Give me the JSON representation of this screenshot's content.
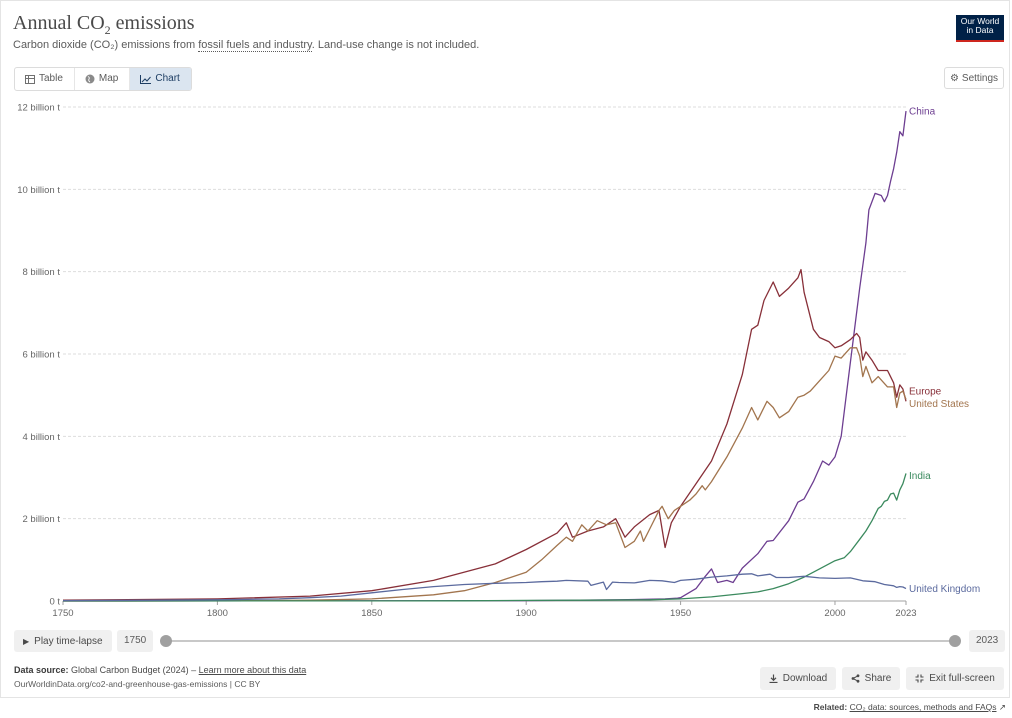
{
  "header": {
    "title_main": "Annual CO",
    "title_sub": "2",
    "title_end": " emissions",
    "subtitle_pre": "Carbon dioxide (CO₂) emissions from ",
    "subtitle_link": "fossil fuels and industry",
    "subtitle_post": ". Land-use change is not included.",
    "logo_line1": "Our World",
    "logo_line2": "in Data"
  },
  "tabs": [
    {
      "label": "Table",
      "icon": "table-icon"
    },
    {
      "label": "Map",
      "icon": "globe-icon"
    },
    {
      "label": "Chart",
      "icon": "line-chart-icon",
      "active": true
    }
  ],
  "settings_label": "Settings",
  "timeline": {
    "play_label": "Play time-lapse",
    "start_year": "1750",
    "end_year": "2023"
  },
  "footer": {
    "source_label": "Data source:",
    "source_text": "Global Carbon Budget (2024) – ",
    "learn_more": "Learn more about this data",
    "url": "OurWorldinData.org/co2-and-greenhouse-gas-emissions | CC BY",
    "download_label": "Download",
    "share_label": "Share",
    "fullscreen_label": "Exit full-screen",
    "related_label": "Related:",
    "related_link": "CO₂ data: sources, methods and FAQs"
  },
  "chart_data": {
    "type": "line",
    "title": "Annual CO₂ emissions",
    "xlabel": "",
    "ylabel": "",
    "xlim": [
      1750,
      2023
    ],
    "ylim": [
      0,
      12
    ],
    "x_ticks": [
      "1750",
      "1800",
      "1850",
      "1900",
      "1950",
      "2000",
      "2023"
    ],
    "y_ticks": [
      "0 t",
      "2 billion t",
      "4 billion t",
      "6 billion t",
      "8 billion t",
      "10 billion t",
      "12 billion t"
    ],
    "grid": true,
    "series": [
      {
        "name": "China",
        "color": "#6d3e91",
        "label_y": 11.9,
        "points": [
          [
            1750,
            0
          ],
          [
            1900,
            0.01
          ],
          [
            1930,
            0.03
          ],
          [
            1945,
            0.05
          ],
          [
            1949,
            0.07
          ],
          [
            1950,
            0.08
          ],
          [
            1955,
            0.3
          ],
          [
            1958,
            0.6
          ],
          [
            1960,
            0.78
          ],
          [
            1962,
            0.45
          ],
          [
            1965,
            0.5
          ],
          [
            1967,
            0.45
          ],
          [
            1970,
            0.8
          ],
          [
            1975,
            1.15
          ],
          [
            1978,
            1.45
          ],
          [
            1980,
            1.47
          ],
          [
            1985,
            1.95
          ],
          [
            1988,
            2.4
          ],
          [
            1990,
            2.48
          ],
          [
            1993,
            2.9
          ],
          [
            1996,
            3.4
          ],
          [
            1998,
            3.3
          ],
          [
            2000,
            3.5
          ],
          [
            2002,
            4.0
          ],
          [
            2004,
            5.2
          ],
          [
            2006,
            6.4
          ],
          [
            2008,
            7.6
          ],
          [
            2010,
            8.7
          ],
          [
            2011,
            9.5
          ],
          [
            2013,
            9.9
          ],
          [
            2015,
            9.85
          ],
          [
            2016,
            9.7
          ],
          [
            2017,
            9.85
          ],
          [
            2018,
            10.2
          ],
          [
            2019,
            10.5
          ],
          [
            2020,
            10.9
          ],
          [
            2021,
            11.4
          ],
          [
            2022,
            11.3
          ],
          [
            2023,
            11.9
          ]
        ]
      },
      {
        "name": "Europe",
        "color": "#883039",
        "label_y": 5.1,
        "points": [
          [
            1750,
            0.02
          ],
          [
            1800,
            0.05
          ],
          [
            1830,
            0.12
          ],
          [
            1850,
            0.25
          ],
          [
            1870,
            0.5
          ],
          [
            1890,
            0.9
          ],
          [
            1900,
            1.25
          ],
          [
            1910,
            1.65
          ],
          [
            1913,
            1.9
          ],
          [
            1915,
            1.55
          ],
          [
            1920,
            1.7
          ],
          [
            1925,
            1.8
          ],
          [
            1929,
            2.0
          ],
          [
            1932,
            1.55
          ],
          [
            1935,
            1.8
          ],
          [
            1940,
            2.1
          ],
          [
            1943,
            2.2
          ],
          [
            1945,
            1.3
          ],
          [
            1947,
            1.9
          ],
          [
            1950,
            2.3
          ],
          [
            1955,
            2.85
          ],
          [
            1960,
            3.4
          ],
          [
            1965,
            4.3
          ],
          [
            1970,
            5.5
          ],
          [
            1973,
            6.6
          ],
          [
            1975,
            6.7
          ],
          [
            1977,
            7.3
          ],
          [
            1980,
            7.75
          ],
          [
            1982,
            7.4
          ],
          [
            1985,
            7.6
          ],
          [
            1988,
            7.85
          ],
          [
            1989,
            8.05
          ],
          [
            1990,
            7.5
          ],
          [
            1993,
            6.6
          ],
          [
            1995,
            6.4
          ],
          [
            1998,
            6.3
          ],
          [
            2000,
            6.15
          ],
          [
            2002,
            6.2
          ],
          [
            2005,
            6.35
          ],
          [
            2007,
            6.5
          ],
          [
            2008,
            6.4
          ],
          [
            2009,
            5.85
          ],
          [
            2010,
            6.05
          ],
          [
            2012,
            5.85
          ],
          [
            2014,
            5.6
          ],
          [
            2017,
            5.6
          ],
          [
            2019,
            5.3
          ],
          [
            2020,
            4.95
          ],
          [
            2021,
            5.25
          ],
          [
            2022,
            5.15
          ],
          [
            2023,
            4.85
          ]
        ]
      },
      {
        "name": "United States",
        "color": "#a2754e",
        "label_y": 4.8,
        "points": [
          [
            1750,
            0
          ],
          [
            1800,
            0.003
          ],
          [
            1830,
            0.02
          ],
          [
            1850,
            0.05
          ],
          [
            1870,
            0.15
          ],
          [
            1880,
            0.25
          ],
          [
            1890,
            0.45
          ],
          [
            1900,
            0.7
          ],
          [
            1905,
            1.0
          ],
          [
            1910,
            1.35
          ],
          [
            1913,
            1.55
          ],
          [
            1915,
            1.45
          ],
          [
            1918,
            1.85
          ],
          [
            1920,
            1.7
          ],
          [
            1923,
            1.95
          ],
          [
            1926,
            1.85
          ],
          [
            1929,
            1.9
          ],
          [
            1932,
            1.3
          ],
          [
            1935,
            1.45
          ],
          [
            1937,
            1.7
          ],
          [
            1938,
            1.45
          ],
          [
            1940,
            1.75
          ],
          [
            1943,
            2.2
          ],
          [
            1944,
            2.3
          ],
          [
            1946,
            2.0
          ],
          [
            1948,
            2.2
          ],
          [
            1950,
            2.3
          ],
          [
            1953,
            2.45
          ],
          [
            1955,
            2.6
          ],
          [
            1957,
            2.8
          ],
          [
            1958,
            2.7
          ],
          [
            1960,
            2.9
          ],
          [
            1965,
            3.5
          ],
          [
            1970,
            4.2
          ],
          [
            1973,
            4.7
          ],
          [
            1975,
            4.4
          ],
          [
            1978,
            4.85
          ],
          [
            1980,
            4.7
          ],
          [
            1982,
            4.45
          ],
          [
            1985,
            4.6
          ],
          [
            1988,
            4.95
          ],
          [
            1990,
            5.0
          ],
          [
            1992,
            5.1
          ],
          [
            1995,
            5.35
          ],
          [
            1998,
            5.6
          ],
          [
            2000,
            5.95
          ],
          [
            2002,
            5.9
          ],
          [
            2005,
            6.15
          ],
          [
            2007,
            6.15
          ],
          [
            2008,
            5.95
          ],
          [
            2009,
            5.45
          ],
          [
            2010,
            5.7
          ],
          [
            2012,
            5.3
          ],
          [
            2014,
            5.45
          ],
          [
            2017,
            5.2
          ],
          [
            2019,
            5.2
          ],
          [
            2020,
            4.7
          ],
          [
            2021,
            5.05
          ],
          [
            2022,
            5.1
          ],
          [
            2023,
            4.9
          ]
        ]
      },
      {
        "name": "India",
        "color": "#3b8a5e",
        "label_y": 3.05,
        "points": [
          [
            1750,
            0
          ],
          [
            1880,
            0.005
          ],
          [
            1900,
            0.015
          ],
          [
            1920,
            0.02
          ],
          [
            1940,
            0.03
          ],
          [
            1950,
            0.05
          ],
          [
            1960,
            0.1
          ],
          [
            1970,
            0.18
          ],
          [
            1975,
            0.22
          ],
          [
            1980,
            0.3
          ],
          [
            1985,
            0.42
          ],
          [
            1990,
            0.58
          ],
          [
            1995,
            0.78
          ],
          [
            2000,
            0.98
          ],
          [
            2003,
            1.05
          ],
          [
            2005,
            1.2
          ],
          [
            2008,
            1.5
          ],
          [
            2010,
            1.7
          ],
          [
            2012,
            1.95
          ],
          [
            2014,
            2.25
          ],
          [
            2015,
            2.3
          ],
          [
            2016,
            2.42
          ],
          [
            2017,
            2.45
          ],
          [
            2018,
            2.6
          ],
          [
            2019,
            2.62
          ],
          [
            2020,
            2.45
          ],
          [
            2021,
            2.7
          ],
          [
            2022,
            2.85
          ],
          [
            2023,
            3.1
          ]
        ]
      },
      {
        "name": "United Kingdom",
        "color": "#5b6a9e",
        "label_y": 0.3,
        "points": [
          [
            1750,
            0.01
          ],
          [
            1780,
            0.02
          ],
          [
            1800,
            0.03
          ],
          [
            1820,
            0.05
          ],
          [
            1830,
            0.08
          ],
          [
            1840,
            0.12
          ],
          [
            1850,
            0.2
          ],
          [
            1860,
            0.28
          ],
          [
            1870,
            0.35
          ],
          [
            1880,
            0.4
          ],
          [
            1890,
            0.43
          ],
          [
            1900,
            0.45
          ],
          [
            1905,
            0.47
          ],
          [
            1910,
            0.48
          ],
          [
            1913,
            0.5
          ],
          [
            1920,
            0.48
          ],
          [
            1921,
            0.38
          ],
          [
            1925,
            0.46
          ],
          [
            1926,
            0.28
          ],
          [
            1928,
            0.46
          ],
          [
            1930,
            0.45
          ],
          [
            1935,
            0.44
          ],
          [
            1940,
            0.5
          ],
          [
            1944,
            0.49
          ],
          [
            1948,
            0.45
          ],
          [
            1950,
            0.5
          ],
          [
            1955,
            0.53
          ],
          [
            1960,
            0.58
          ],
          [
            1965,
            0.61
          ],
          [
            1970,
            0.65
          ],
          [
            1973,
            0.66
          ],
          [
            1975,
            0.61
          ],
          [
            1979,
            0.65
          ],
          [
            1981,
            0.57
          ],
          [
            1985,
            0.57
          ],
          [
            1990,
            0.6
          ],
          [
            1995,
            0.56
          ],
          [
            2000,
            0.55
          ],
          [
            2005,
            0.56
          ],
          [
            2009,
            0.49
          ],
          [
            2013,
            0.47
          ],
          [
            2016,
            0.4
          ],
          [
            2019,
            0.37
          ],
          [
            2020,
            0.33
          ],
          [
            2021,
            0.35
          ],
          [
            2022,
            0.34
          ],
          [
            2023,
            0.3
          ]
        ]
      }
    ]
  }
}
